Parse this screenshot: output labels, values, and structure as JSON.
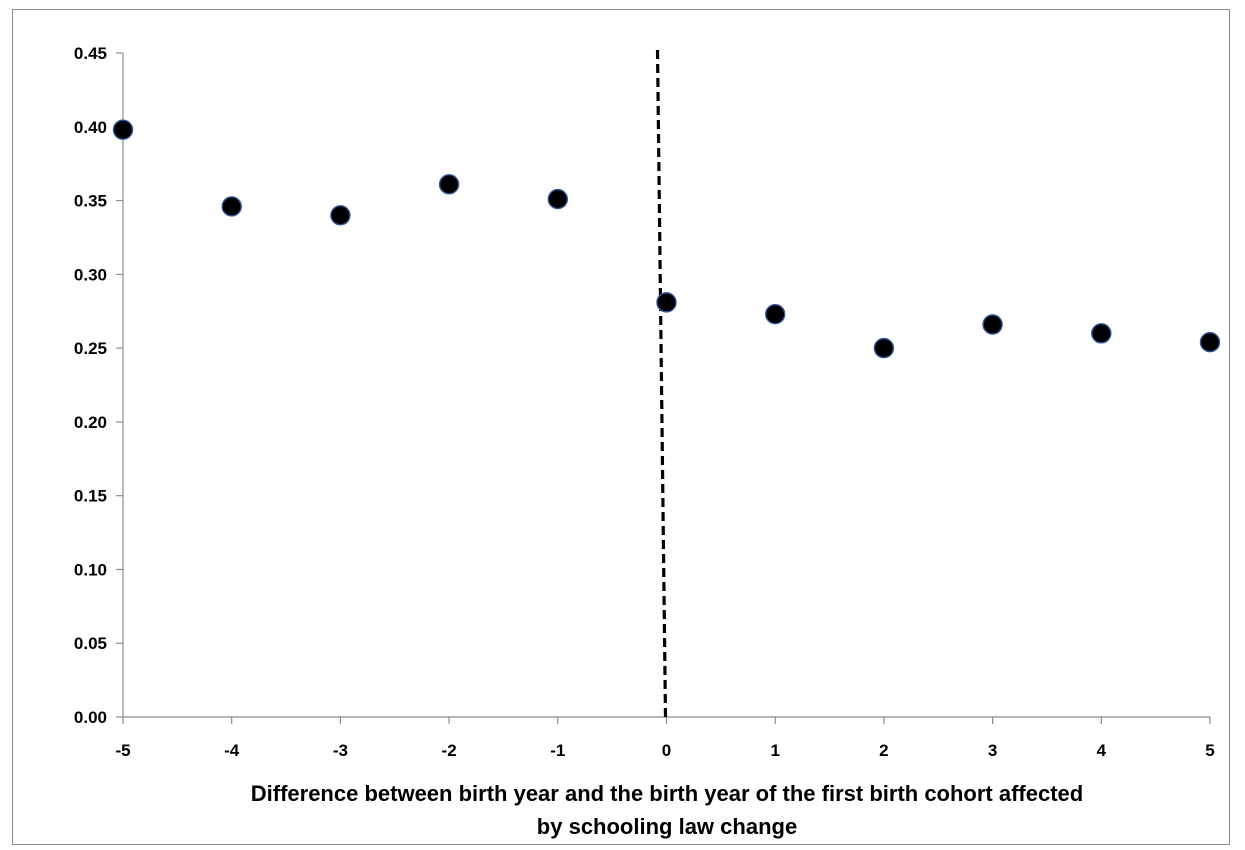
{
  "chart_data": {
    "type": "scatter",
    "title": "",
    "xlabel_lines": [
      "Difference between birth year and the birth year of the first birth cohort affected",
      "by schooling law change"
    ],
    "ylabel": "",
    "x": [
      -5,
      -4,
      -3,
      -2,
      -1,
      0,
      1,
      2,
      3,
      4,
      5
    ],
    "y": [
      0.398,
      0.346,
      0.34,
      0.361,
      0.351,
      0.281,
      0.273,
      0.25,
      0.266,
      0.26,
      0.254
    ],
    "xlim": [
      -5,
      5
    ],
    "ylim": [
      0,
      0.45
    ],
    "x_ticks": [
      "-5",
      "-4",
      "-3",
      "-2",
      "-1",
      "0",
      "1",
      "2",
      "3",
      "4",
      "5"
    ],
    "y_ticks": [
      "0.00",
      "0.05",
      "0.10",
      "0.15",
      "0.20",
      "0.25",
      "0.30",
      "0.35",
      "0.40",
      "0.45"
    ],
    "grid": false,
    "reference_line": {
      "x": 0,
      "style": "dashed",
      "color": "#000000"
    },
    "marker_color": "#000000",
    "marker_edge_color": "#2f5597"
  }
}
